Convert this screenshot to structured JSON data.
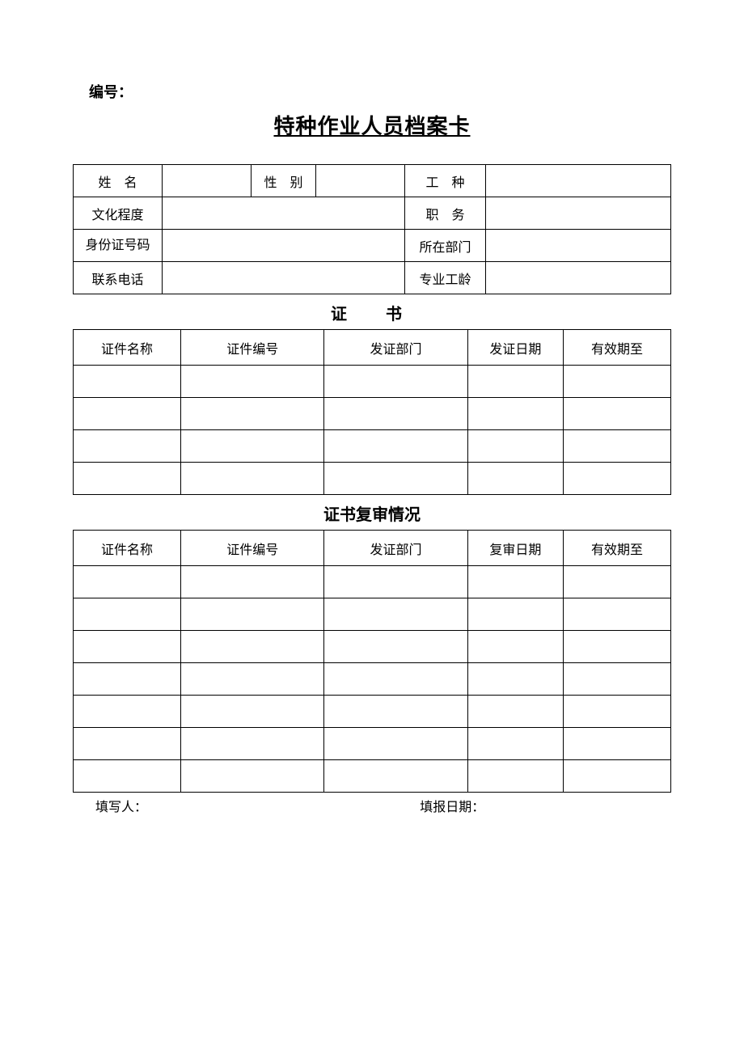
{
  "header": {
    "serial_label": "编号：",
    "title": "特种作业人员档案卡"
  },
  "info": {
    "labels": {
      "name": "姓　名",
      "gender": "性　别",
      "work_type": "工　种",
      "education": "文化程度",
      "position": "职　务",
      "id_number": "身份证号码",
      "department": "所在部门",
      "phone": "联系电话",
      "seniority": "专业工龄"
    },
    "values": {
      "name": "",
      "gender": "",
      "work_type": "",
      "education": "",
      "position": "",
      "id_number": "",
      "department": "",
      "phone": "",
      "seniority": ""
    }
  },
  "cert": {
    "title": "证　书",
    "columns": [
      "证件名称",
      "证件编号",
      "发证部门",
      "发证日期",
      "有效期至"
    ],
    "col_widths_pct": [
      18,
      24,
      24,
      16,
      18
    ],
    "rows": [
      [
        "",
        "",
        "",
        "",
        ""
      ],
      [
        "",
        "",
        "",
        "",
        ""
      ],
      [
        "",
        "",
        "",
        "",
        ""
      ],
      [
        "",
        "",
        "",
        "",
        ""
      ]
    ]
  },
  "review": {
    "title": "证书复审情况",
    "columns": [
      "证件名称",
      "证件编号",
      "发证部门",
      "复审日期",
      "有效期至"
    ],
    "col_widths_pct": [
      18,
      24,
      24,
      16,
      18
    ],
    "rows": [
      [
        "",
        "",
        "",
        "",
        ""
      ],
      [
        "",
        "",
        "",
        "",
        ""
      ],
      [
        "",
        "",
        "",
        "",
        ""
      ],
      [
        "",
        "",
        "",
        "",
        ""
      ],
      [
        "",
        "",
        "",
        "",
        ""
      ],
      [
        "",
        "",
        "",
        "",
        ""
      ],
      [
        "",
        "",
        "",
        "",
        ""
      ]
    ]
  },
  "footer": {
    "filler_label": "填写人：",
    "date_label": "填报日期："
  },
  "style": {
    "border_color": "#000000",
    "background": "#ffffff",
    "text_color": "#000000",
    "title_fontsize": 26,
    "section_fontsize": 20,
    "body_fontsize": 16
  }
}
